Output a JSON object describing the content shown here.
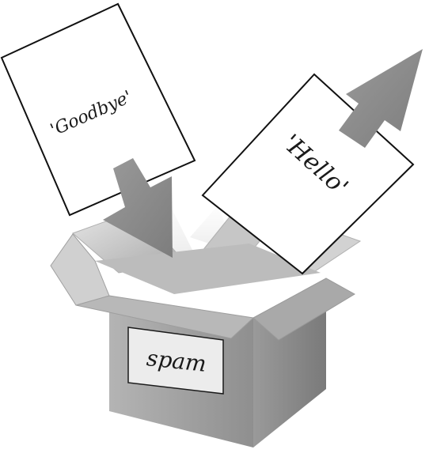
{
  "cards": {
    "goodbye": "'Goodbye'",
    "hello": "'Hello'"
  },
  "box": {
    "label": "spam"
  },
  "colors": {
    "outline": "#111111",
    "arrow_fill": "#8c8c8c",
    "box_front": "#9e9e9e",
    "box_side": "#8a8a8a",
    "box_inner": "#c8c8c8",
    "card_fill": "#ffffff"
  }
}
